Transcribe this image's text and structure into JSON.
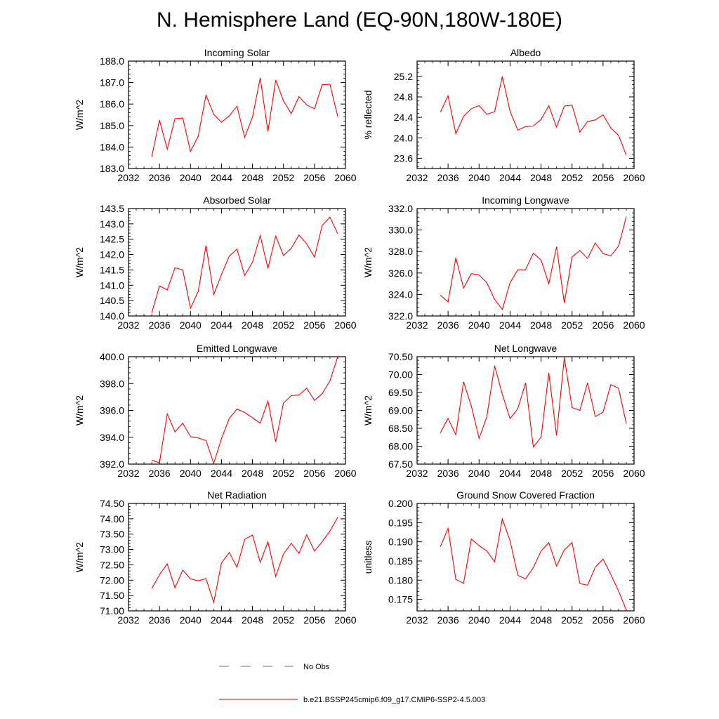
{
  "title": "N. Hemisphere Land (EQ-90N,180W-180E)",
  "years": [
    2035,
    2036,
    2037,
    2038,
    2039,
    2040,
    2041,
    2042,
    2043,
    2044,
    2045,
    2046,
    2047,
    2048,
    2049,
    2050,
    2051,
    2052,
    2053,
    2054,
    2055,
    2056,
    2057,
    2058,
    2059
  ],
  "x_ticks": [
    2032,
    2036,
    2040,
    2044,
    2048,
    2052,
    2056,
    2060
  ],
  "x_range": [
    2032,
    2060
  ],
  "line_color": "#ff0000",
  "obs_color": "#6a6ad0",
  "legend": {
    "obs_label": "No Obs",
    "model_label": "b.e21.BSSP245cmip6.f09_g17.CMIP6-SSP2-4.5.003"
  },
  "chart_data": [
    {
      "type": "line",
      "title": "Incoming Solar",
      "ylabel": "W/m^2",
      "ylim": [
        183.0,
        188.0
      ],
      "yticks": [
        183.0,
        184.0,
        185.0,
        186.0,
        187.0,
        188.0
      ],
      "ytick_labels": [
        "183.0",
        "184.0",
        "185.0",
        "186.0",
        "187.0",
        "188.0"
      ],
      "values": [
        183.55,
        185.25,
        183.9,
        185.32,
        185.35,
        183.8,
        184.5,
        186.42,
        185.52,
        185.15,
        185.45,
        185.9,
        184.45,
        185.4,
        187.22,
        184.72,
        187.12,
        186.15,
        185.55,
        186.35,
        185.95,
        185.78,
        186.9,
        186.92,
        185.42
      ]
    },
    {
      "type": "line",
      "title": "Albedo",
      "ylabel": "% reflected",
      "ylim": [
        23.4,
        25.5
      ],
      "yticks": [
        23.6,
        24.0,
        24.4,
        24.8,
        25.2
      ],
      "ytick_labels": [
        "23.6",
        "24.0",
        "24.4",
        "24.8",
        "25.2"
      ],
      "values": [
        24.5,
        24.82,
        24.08,
        24.42,
        24.57,
        24.63,
        24.46,
        24.51,
        25.2,
        24.52,
        24.15,
        24.22,
        24.23,
        24.36,
        24.63,
        24.21,
        24.62,
        24.64,
        24.11,
        24.32,
        24.35,
        24.45,
        24.19,
        24.05,
        23.66
      ]
    },
    {
      "type": "line",
      "title": "Absorbed Solar",
      "ylabel": "W/m^2",
      "ylim": [
        140.0,
        143.5
      ],
      "yticks": [
        140.0,
        140.5,
        141.0,
        141.5,
        142.0,
        142.5,
        143.0,
        143.5
      ],
      "ytick_labels": [
        "140.0",
        "140.5",
        "141.0",
        "141.5",
        "142.0",
        "142.5",
        "143.0",
        "143.5"
      ],
      "values": [
        140.1,
        140.98,
        140.85,
        141.57,
        141.5,
        140.25,
        140.8,
        142.3,
        140.7,
        141.35,
        141.95,
        142.18,
        141.32,
        141.75,
        142.62,
        141.55,
        142.6,
        141.97,
        142.2,
        142.64,
        142.35,
        141.92,
        142.95,
        143.22,
        142.68
      ]
    },
    {
      "type": "line",
      "title": "Incoming Longwave",
      "ylabel": "W/m^2",
      "ylim": [
        322.0,
        332.0
      ],
      "yticks": [
        322.0,
        324.0,
        326.0,
        328.0,
        330.0,
        332.0
      ],
      "ytick_labels": [
        "322.0",
        "324.0",
        "326.0",
        "328.0",
        "330.0",
        "332.0"
      ],
      "values": [
        323.95,
        323.3,
        327.42,
        324.6,
        325.95,
        325.82,
        325.1,
        323.55,
        322.6,
        325.1,
        326.3,
        326.3,
        327.85,
        327.2,
        325.0,
        328.45,
        323.2,
        327.5,
        328.1,
        327.35,
        328.8,
        327.8,
        327.6,
        328.5,
        331.25
      ]
    },
    {
      "type": "line",
      "title": "Emitted Longwave",
      "ylabel": "W/m^2",
      "ylim": [
        392.0,
        400.0
      ],
      "yticks": [
        392.0,
        394.0,
        396.0,
        398.0,
        400.0
      ],
      "ytick_labels": [
        "392.0",
        "394.0",
        "396.0",
        "398.0",
        "400.0"
      ],
      "values": [
        392.3,
        392.1,
        395.75,
        394.4,
        395.05,
        394.05,
        393.95,
        393.75,
        392.05,
        393.9,
        395.4,
        396.1,
        395.85,
        395.45,
        395.05,
        396.7,
        393.65,
        396.55,
        397.1,
        397.15,
        397.65,
        396.75,
        397.25,
        398.2,
        400.0
      ]
    },
    {
      "type": "line",
      "title": "Net Longwave",
      "ylabel": "W/m^2",
      "ylim": [
        67.5,
        70.5
      ],
      "yticks": [
        67.5,
        68.0,
        68.5,
        69.0,
        69.5,
        70.0,
        70.5
      ],
      "ytick_labels": [
        "67.50",
        "68.00",
        "68.50",
        "69.00",
        "69.50",
        "70.00",
        "70.50"
      ],
      "values": [
        68.37,
        68.78,
        68.32,
        69.8,
        69.12,
        68.22,
        68.82,
        70.25,
        69.45,
        68.77,
        69.05,
        69.77,
        67.98,
        68.25,
        70.05,
        68.3,
        70.48,
        69.08,
        69.0,
        69.77,
        68.83,
        68.95,
        69.72,
        69.62,
        68.63
      ]
    },
    {
      "type": "line",
      "title": "Net Radiation",
      "ylabel": "W/m^2",
      "ylim": [
        71.0,
        74.5
      ],
      "yticks": [
        71.0,
        71.5,
        72.0,
        72.5,
        73.0,
        73.5,
        74.0,
        74.5
      ],
      "ytick_labels": [
        "71.00",
        "71.50",
        "72.00",
        "72.50",
        "73.00",
        "73.50",
        "74.00",
        "74.50"
      ],
      "values": [
        71.72,
        72.18,
        72.53,
        71.75,
        72.33,
        72.04,
        71.98,
        72.05,
        71.28,
        72.56,
        72.9,
        72.42,
        73.33,
        73.47,
        72.58,
        73.25,
        72.12,
        72.85,
        73.2,
        72.87,
        73.48,
        72.95,
        73.25,
        73.6,
        74.05
      ]
    },
    {
      "type": "line",
      "title": "Ground Snow Covered Fraction",
      "ylabel": "unitless",
      "ylim": [
        0.172,
        0.2
      ],
      "yticks": [
        0.175,
        0.18,
        0.185,
        0.19,
        0.195,
        0.2
      ],
      "ytick_labels": [
        "0.175",
        "0.180",
        "0.185",
        "0.190",
        "0.195",
        "0.200"
      ],
      "values": [
        0.1887,
        0.1935,
        0.1802,
        0.1792,
        0.1907,
        0.189,
        0.1876,
        0.1848,
        0.196,
        0.1903,
        0.1813,
        0.1803,
        0.1833,
        0.1876,
        0.1898,
        0.1837,
        0.1879,
        0.1898,
        0.1791,
        0.1787,
        0.1834,
        0.1855,
        0.1815,
        0.1772,
        0.1722
      ]
    }
  ]
}
